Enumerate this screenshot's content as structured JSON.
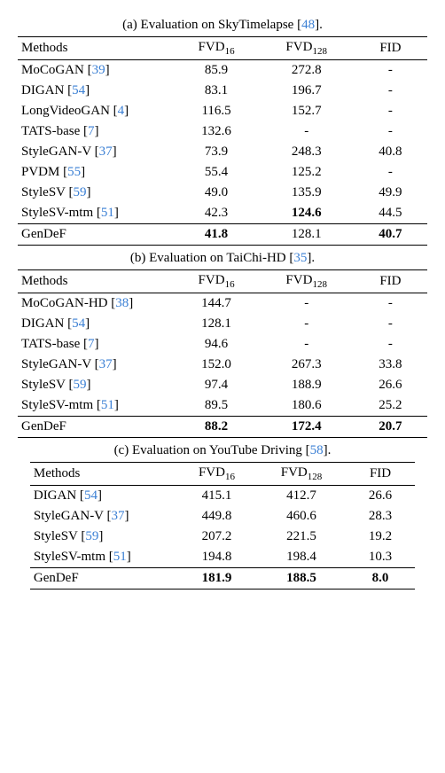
{
  "tables": {
    "a": {
      "caption_prefix": "(a) Evaluation on SkyTimelapse [",
      "caption_cite": "48",
      "caption_suffix": "].",
      "headers": {
        "method": "Methods",
        "fvd16_main": "FVD",
        "fvd16_sub": "16",
        "fvd128_main": "FVD",
        "fvd128_sub": "128",
        "fid": "FID"
      },
      "rows": [
        {
          "name": "MoCoGAN [",
          "cite": "39",
          "suffix": "]",
          "fvd16": "85.9",
          "fvd128": "272.8",
          "fid": "-",
          "bold": {}
        },
        {
          "name": "DIGAN [",
          "cite": "54",
          "suffix": "]",
          "fvd16": "83.1",
          "fvd128": "196.7",
          "fid": "-",
          "bold": {}
        },
        {
          "name": "LongVideoGAN [",
          "cite": "4",
          "suffix": "]",
          "fvd16": "116.5",
          "fvd128": "152.7",
          "fid": "-",
          "bold": {}
        },
        {
          "name": "TATS-base [",
          "cite": "7",
          "suffix": "]",
          "fvd16": "132.6",
          "fvd128": "-",
          "fid": "-",
          "bold": {}
        },
        {
          "name": "StyleGAN-V [",
          "cite": "37",
          "suffix": "]",
          "fvd16": "73.9",
          "fvd128": "248.3",
          "fid": "40.8",
          "bold": {}
        },
        {
          "name": "PVDM [",
          "cite": "55",
          "suffix": "]",
          "fvd16": "55.4",
          "fvd128": "125.2",
          "fid": "-",
          "bold": {}
        },
        {
          "name": "StyleSV [",
          "cite": "59",
          "suffix": "]",
          "fvd16": "49.0",
          "fvd128": "135.9",
          "fid": "49.9",
          "bold": {}
        },
        {
          "name": "StyleSV-mtm [",
          "cite": "51",
          "suffix": "]",
          "fvd16": "42.3",
          "fvd128": "124.6",
          "fid": "44.5",
          "bold": {
            "fvd128": true
          }
        }
      ],
      "final": {
        "name": "GenDeF",
        "fvd16": "41.8",
        "fvd128": "128.1",
        "fid": "40.7",
        "bold": {
          "fvd16": true,
          "fid": true
        }
      }
    },
    "b": {
      "caption_prefix": "(b) Evaluation on TaiChi-HD [",
      "caption_cite": "35",
      "caption_suffix": "].",
      "headers": {
        "method": "Methods",
        "fvd16_main": "FVD",
        "fvd16_sub": "16",
        "fvd128_main": "FVD",
        "fvd128_sub": "128",
        "fid": "FID"
      },
      "rows": [
        {
          "name": "MoCoGAN-HD [",
          "cite": "38",
          "suffix": "]",
          "fvd16": "144.7",
          "fvd128": "-",
          "fid": "-",
          "bold": {}
        },
        {
          "name": "DIGAN [",
          "cite": "54",
          "suffix": "]",
          "fvd16": "128.1",
          "fvd128": "-",
          "fid": "-",
          "bold": {}
        },
        {
          "name": "TATS-base [",
          "cite": "7",
          "suffix": "]",
          "fvd16": "94.6",
          "fvd128": "-",
          "fid": "-",
          "bold": {}
        },
        {
          "name": "StyleGAN-V [",
          "cite": "37",
          "suffix": "]",
          "fvd16": "152.0",
          "fvd128": "267.3",
          "fid": "33.8",
          "bold": {}
        },
        {
          "name": "StyleSV [",
          "cite": "59",
          "suffix": "]",
          "fvd16": "97.4",
          "fvd128": "188.9",
          "fid": "26.6",
          "bold": {}
        },
        {
          "name": "StyleSV-mtm [",
          "cite": "51",
          "suffix": "]",
          "fvd16": "89.5",
          "fvd128": "180.6",
          "fid": "25.2",
          "bold": {}
        }
      ],
      "final": {
        "name": "GenDeF",
        "fvd16": "88.2",
        "fvd128": "172.4",
        "fid": "20.7",
        "bold": {
          "fvd16": true,
          "fvd128": true,
          "fid": true
        }
      }
    },
    "c": {
      "caption_prefix": "(c) Evaluation on YouTube Driving [",
      "caption_cite": "58",
      "caption_suffix": "].",
      "headers": {
        "method": "Methods",
        "fvd16_main": "FVD",
        "fvd16_sub": "16",
        "fvd128_main": "FVD",
        "fvd128_sub": "128",
        "fid": "FID"
      },
      "rows": [
        {
          "name": "DIGAN [",
          "cite": "54",
          "suffix": "]",
          "fvd16": "415.1",
          "fvd128": "412.7",
          "fid": "26.6",
          "bold": {}
        },
        {
          "name": "StyleGAN-V [",
          "cite": "37",
          "suffix": "]",
          "fvd16": "449.8",
          "fvd128": "460.6",
          "fid": "28.3",
          "bold": {}
        },
        {
          "name": "StyleSV [",
          "cite": "59",
          "suffix": "]",
          "fvd16": "207.2",
          "fvd128": "221.5",
          "fid": "19.2",
          "bold": {}
        },
        {
          "name": "StyleSV-mtm [",
          "cite": "51",
          "suffix": "]",
          "fvd16": "194.8",
          "fvd128": "198.4",
          "fid": "10.3",
          "bold": {}
        }
      ],
      "final": {
        "name": "GenDeF",
        "fvd16": "181.9",
        "fvd128": "188.5",
        "fid": "8.0",
        "bold": {
          "fvd16": true,
          "fvd128": true,
          "fid": true
        }
      }
    }
  },
  "colors": {
    "link": "#3a7fd4",
    "text": "#000000",
    "background": "#ffffff"
  }
}
